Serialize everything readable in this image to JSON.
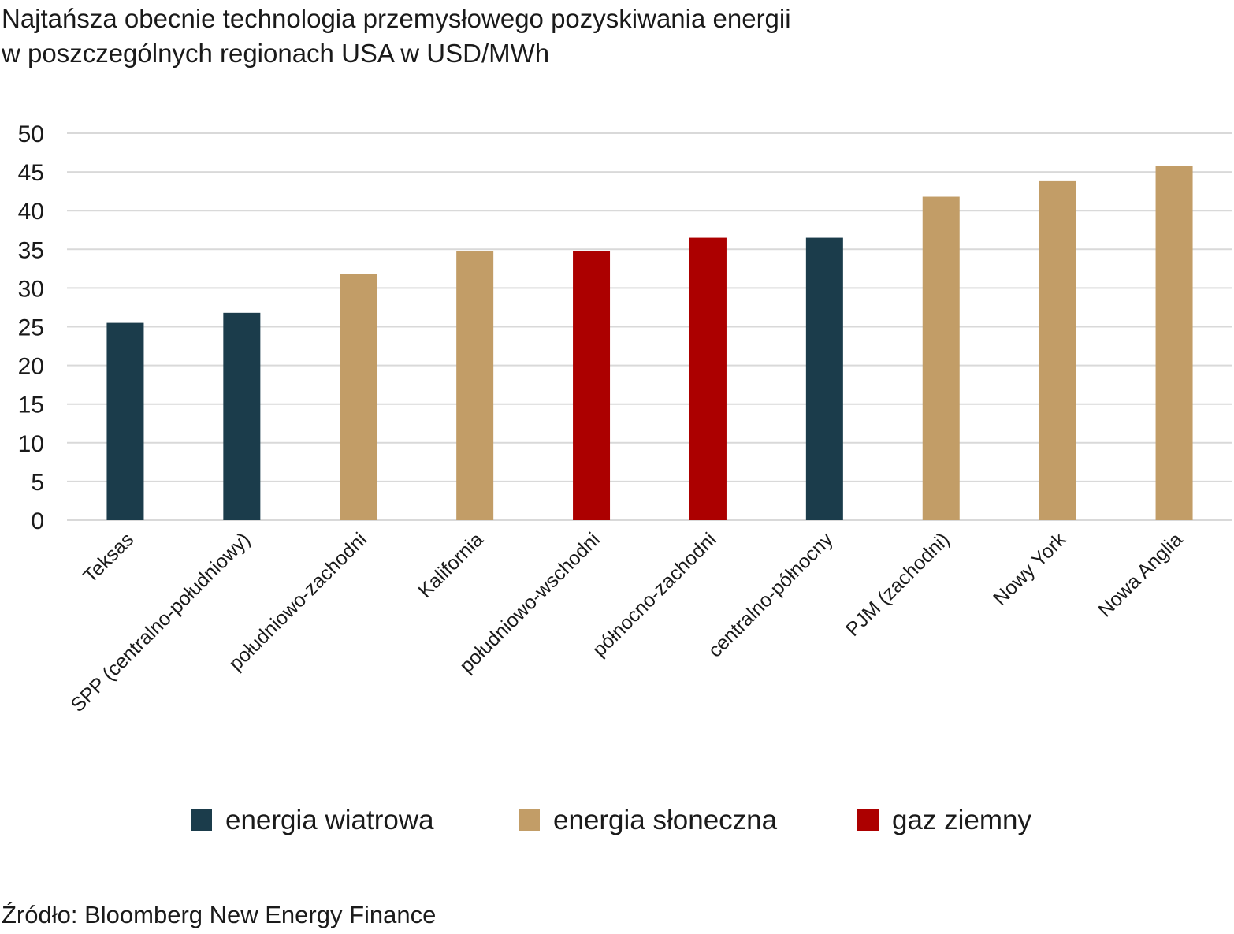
{
  "chart_data": {
    "type": "bar",
    "title": "Najtańsza obecnie technologia przemysłowego pozyskiwania energii",
    "subtitle": "w poszczególnych regionach USA w USD/MWh",
    "xlabel": "",
    "ylabel": "",
    "ylim": [
      0,
      50
    ],
    "yticks": [
      "0",
      "5",
      "10",
      "15",
      "20",
      "25",
      "30",
      "35",
      "40",
      "45",
      "50"
    ],
    "grid": true,
    "legend_position": "bottom",
    "categories": [
      "Teksas",
      "SPP (centralno-południowy)",
      "południowo-zachodni",
      "Kalifornia",
      "południowo-wschodni",
      "północno-zachodni",
      "centralno-północny",
      "PJM  (zachodni)",
      "Nowy York",
      "Nowa Anglia"
    ],
    "values": [
      25.5,
      26.8,
      31.8,
      34.8,
      34.8,
      36.5,
      36.5,
      41.8,
      43.8,
      45.8
    ],
    "bar_series": [
      0,
      0,
      1,
      1,
      2,
      2,
      0,
      1,
      1,
      1
    ],
    "series": [
      {
        "name": "energia wiatrowa",
        "color": "#1b3c4b"
      },
      {
        "name": "energia słoneczna",
        "color": "#c29d67"
      },
      {
        "name": "gaz ziemny",
        "color": "#ac0000"
      }
    ]
  },
  "source": "Źródło: Bloomberg New Energy Finance"
}
